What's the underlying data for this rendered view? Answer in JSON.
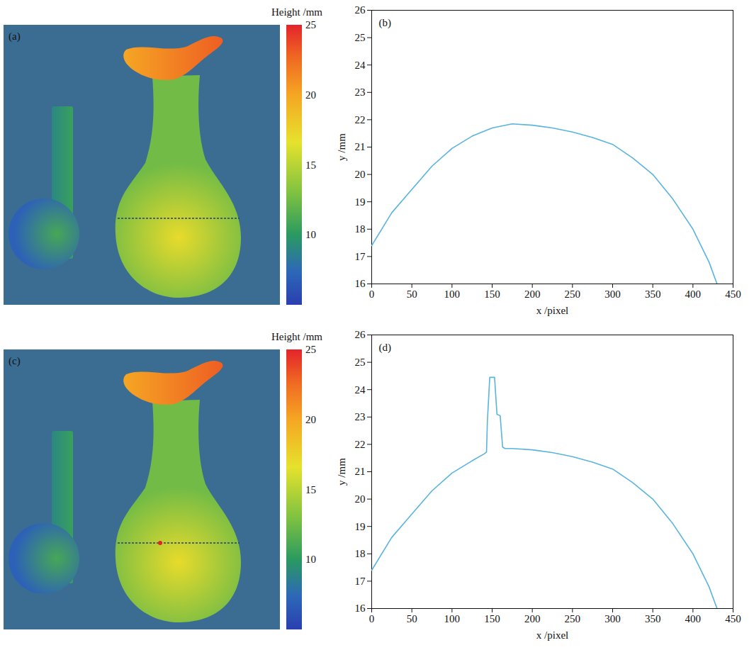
{
  "chart_data": [
    {
      "type": "heatmap",
      "panel": "(a)",
      "colorbar": {
        "label": "Height /mm",
        "range": [
          5,
          25
        ],
        "ticks": [
          10,
          15,
          20,
          25
        ]
      },
      "region_heights": [
        [
          20,
          23
        ],
        [
          17,
          12.5
        ],
        [
          11,
          7
        ],
        [
          10.5,
          9
        ]
      ]
    },
    {
      "type": "line",
      "panel": "(b)",
      "color": "#5ab4e0",
      "x": [
        0,
        25,
        50,
        75,
        100,
        125,
        150,
        175,
        200,
        225,
        250,
        275,
        300,
        325,
        350,
        375,
        400,
        420,
        430
      ],
      "values": [
        17.4,
        18.6,
        19.45,
        20.3,
        20.95,
        21.4,
        21.7,
        21.85,
        21.8,
        21.7,
        21.55,
        21.35,
        21.1,
        20.6,
        20.0,
        19.1,
        18.0,
        16.8,
        16.0
      ],
      "xlabel": "x /pixel",
      "ylabel": "y /mm",
      "xlim": [
        0,
        450
      ],
      "xticks": [
        0,
        50,
        100,
        150,
        200,
        250,
        300,
        350,
        400,
        450
      ],
      "ylim": [
        16,
        26
      ],
      "yticks": [
        16,
        17,
        18,
        19,
        20,
        21,
        22,
        23,
        24,
        25,
        26
      ]
    },
    {
      "type": "heatmap",
      "panel": "(c)",
      "colorbar": {
        "label": "Height /mm",
        "range": [
          5,
          25
        ],
        "ticks": [
          10,
          15,
          20,
          25
        ]
      },
      "region_heights": [
        [
          20,
          23
        ],
        [
          17,
          12.5
        ],
        [
          11,
          7
        ],
        [
          10.5,
          9
        ]
      ],
      "profile_defect": 150
    },
    {
      "type": "line",
      "panel": "(d)",
      "color": "#5ab4e0",
      "x": [
        0,
        25,
        50,
        75,
        100,
        125,
        140,
        143,
        144,
        147,
        153,
        156,
        160,
        163,
        166,
        175,
        200,
        225,
        250,
        275,
        300,
        325,
        350,
        375,
        400,
        420,
        430
      ],
      "values": [
        17.4,
        18.6,
        19.45,
        20.3,
        20.95,
        21.4,
        21.65,
        21.72,
        22.8,
        24.45,
        24.45,
        23.1,
        23.05,
        21.9,
        21.85,
        21.85,
        21.8,
        21.7,
        21.55,
        21.35,
        21.1,
        20.6,
        20.0,
        19.1,
        18.0,
        16.8,
        16.0
      ],
      "xlabel": "x /pixel",
      "ylabel": "y /mm",
      "xlim": [
        0,
        450
      ],
      "xticks": [
        0,
        50,
        100,
        150,
        200,
        250,
        300,
        350,
        400,
        450
      ],
      "ylim": [
        16,
        26
      ],
      "yticks": [
        16,
        17,
        18,
        19,
        20,
        21,
        22,
        23,
        24,
        25,
        26
      ]
    }
  ]
}
